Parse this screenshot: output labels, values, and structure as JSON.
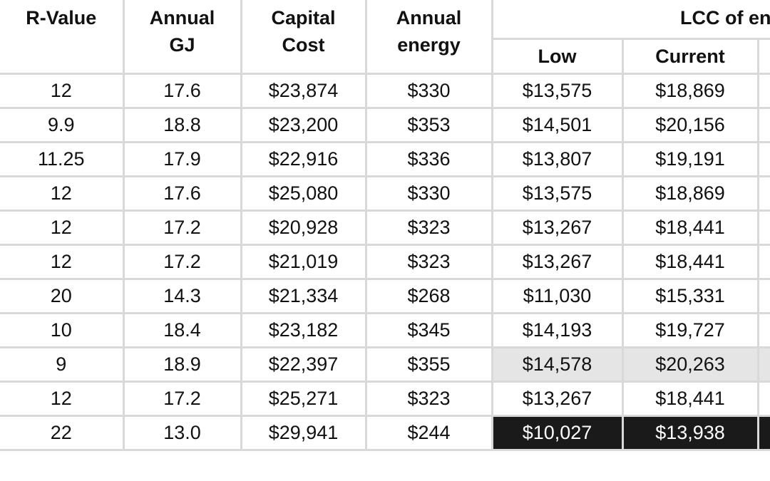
{
  "table": {
    "headers": {
      "r_value": "R-Value",
      "annual_gj": [
        "Annual",
        "GJ"
      ],
      "capital_cost": [
        "Capital",
        "Cost"
      ],
      "annual_energy": [
        "Annual",
        "energy"
      ],
      "lcc_group": "LCC of energy",
      "lcc_low": "Low",
      "lcc_current": "Current"
    },
    "rows": [
      {
        "r_value": "12",
        "annual_gj": "17.6",
        "capital_cost": "$23,874",
        "annual_energy": "$330",
        "lcc_low": "$13,575",
        "lcc_current": "$18,869",
        "highlight": "none"
      },
      {
        "r_value": "9.9",
        "annual_gj": "18.8",
        "capital_cost": "$23,200",
        "annual_energy": "$353",
        "lcc_low": "$14,501",
        "lcc_current": "$20,156",
        "highlight": "none"
      },
      {
        "r_value": "11.25",
        "annual_gj": "17.9",
        "capital_cost": "$22,916",
        "annual_energy": "$336",
        "lcc_low": "$13,807",
        "lcc_current": "$19,191",
        "highlight": "none"
      },
      {
        "r_value": "12",
        "annual_gj": "17.6",
        "capital_cost": "$25,080",
        "annual_energy": "$330",
        "lcc_low": "$13,575",
        "lcc_current": "$18,869",
        "highlight": "none"
      },
      {
        "r_value": "12",
        "annual_gj": "17.2",
        "capital_cost": "$20,928",
        "annual_energy": "$323",
        "lcc_low": "$13,267",
        "lcc_current": "$18,441",
        "highlight": "none"
      },
      {
        "r_value": "12",
        "annual_gj": "17.2",
        "capital_cost": "$21,019",
        "annual_energy": "$323",
        "lcc_low": "$13,267",
        "lcc_current": "$18,441",
        "highlight": "none"
      },
      {
        "r_value": "20",
        "annual_gj": "14.3",
        "capital_cost": "$21,334",
        "annual_energy": "$268",
        "lcc_low": "$11,030",
        "lcc_current": "$15,331",
        "highlight": "none"
      },
      {
        "r_value": "10",
        "annual_gj": "18.4",
        "capital_cost": "$23,182",
        "annual_energy": "$345",
        "lcc_low": "$14,193",
        "lcc_current": "$19,727",
        "highlight": "none"
      },
      {
        "r_value": "9",
        "annual_gj": "18.9",
        "capital_cost": "$22,397",
        "annual_energy": "$355",
        "lcc_low": "$14,578",
        "lcc_current": "$20,263",
        "highlight": "light"
      },
      {
        "r_value": "12",
        "annual_gj": "17.2",
        "capital_cost": "$25,271",
        "annual_energy": "$323",
        "lcc_low": "$13,267",
        "lcc_current": "$18,441",
        "highlight": "none"
      },
      {
        "r_value": "22",
        "annual_gj": "13.0",
        "capital_cost": "$29,941",
        "annual_energy": "$244",
        "lcc_low": "$10,027",
        "lcc_current": "$13,938",
        "highlight": "dark"
      }
    ]
  },
  "colors": {
    "grid_line": "#d9d9d9",
    "highlight_light": "#e5e5e5",
    "highlight_dark": "#1a1a1a",
    "text": "#111111"
  }
}
